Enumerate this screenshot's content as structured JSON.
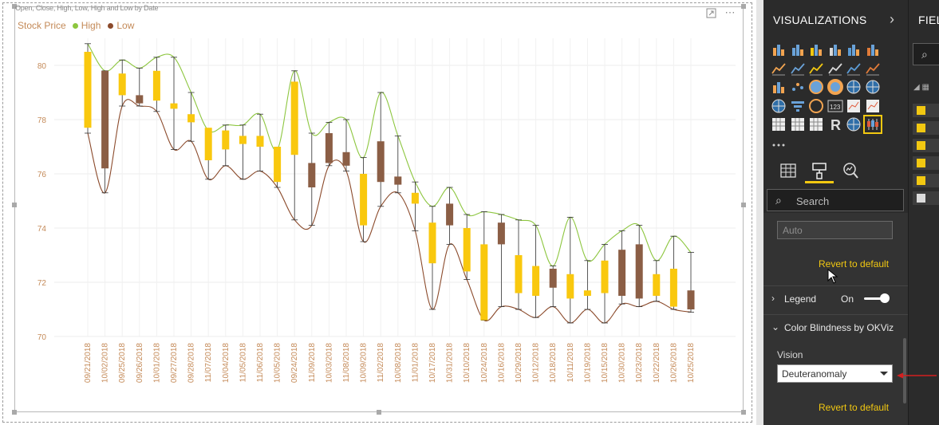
{
  "visual": {
    "title": "Open, Close, High, Low, High and Low by Date",
    "legend": {
      "title": "Stock Price",
      "items": [
        {
          "name": "High",
          "color": "#8dc63f"
        },
        {
          "name": "Low",
          "color": "#8b4a2b"
        }
      ]
    },
    "header_icons": [
      "focus-mode-icon",
      "more-options-icon"
    ]
  },
  "chart_data": {
    "type": "candlestick",
    "x": [
      "09/21/2018",
      "10/02/2018",
      "09/25/2018",
      "09/26/2018",
      "10/01/2018",
      "09/27/2018",
      "09/28/2018",
      "11/07/2018",
      "10/04/2018",
      "11/05/2018",
      "11/06/2018",
      "10/05/2018",
      "09/24/2018",
      "11/09/2018",
      "10/03/2018",
      "11/08/2018",
      "10/09/2018",
      "11/02/2018",
      "10/08/2018",
      "11/01/2018",
      "10/17/2018",
      "10/31/2018",
      "10/10/2018",
      "10/24/2018",
      "10/16/2018",
      "10/29/2018",
      "10/12/2018",
      "10/18/2018",
      "10/11/2018",
      "10/19/2018",
      "10/15/2018",
      "10/30/2018",
      "10/23/2018",
      "10/22/2018",
      "10/26/2018",
      "10/25/2018"
    ],
    "open": [
      77.7,
      79.8,
      78.9,
      78.9,
      78.7,
      78.4,
      77.9,
      76.5,
      76.9,
      77.1,
      77.0,
      75.7,
      76.7,
      76.4,
      77.5,
      76.8,
      74.1,
      77.2,
      75.9,
      74.9,
      72.7,
      74.9,
      72.4,
      70.6,
      74.2,
      71.6,
      71.5,
      72.5,
      71.4,
      71.5,
      71.6,
      73.2,
      73.4,
      71.5,
      71.1,
      71.7
    ],
    "close": [
      80.5,
      76.2,
      79.7,
      78.6,
      79.8,
      78.6,
      78.2,
      77.7,
      77.6,
      77.4,
      77.4,
      77.0,
      79.4,
      75.5,
      76.4,
      76.3,
      76.0,
      75.7,
      75.6,
      75.3,
      74.2,
      74.1,
      74.0,
      73.4,
      73.4,
      73.0,
      72.6,
      71.8,
      72.3,
      71.7,
      72.8,
      71.5,
      71.4,
      72.3,
      72.5,
      71.0
    ],
    "high": [
      80.8,
      79.8,
      80.2,
      79.9,
      80.3,
      80.3,
      79.0,
      77.6,
      77.8,
      77.8,
      78.2,
      76.9,
      79.8,
      77.5,
      77.9,
      78.0,
      76.6,
      79.0,
      77.4,
      75.7,
      74.8,
      75.5,
      74.5,
      74.6,
      74.5,
      74.3,
      74.1,
      72.6,
      74.4,
      72.8,
      73.4,
      73.9,
      74.1,
      72.8,
      73.7,
      73.1
    ],
    "low": [
      77.5,
      75.3,
      78.5,
      78.5,
      78.3,
      76.9,
      77.2,
      75.8,
      76.3,
      75.8,
      76.1,
      75.5,
      74.3,
      74.1,
      76.3,
      76.1,
      73.5,
      74.8,
      75.3,
      73.9,
      71.0,
      73.4,
      72.1,
      70.6,
      71.1,
      71.0,
      70.7,
      71.1,
      70.5,
      71.0,
      70.5,
      71.2,
      71.1,
      71.3,
      71.0,
      70.9
    ],
    "ylim": [
      70,
      81
    ],
    "yticks": [
      70,
      72,
      74,
      76,
      78,
      80
    ],
    "colors": {
      "up": "#f9c80e",
      "down": "#8b5e45",
      "high_line": "#8dc63f",
      "low_line": "#8b4a2b",
      "tick_label": "#c48a58"
    },
    "grid": true,
    "legend_position": "top-left"
  },
  "viz_pane": {
    "title": "VISUALIZATIONS",
    "gallery_icons": [
      "stacked-bar-icon",
      "stacked-column-icon",
      "clustered-bar-icon",
      "clustered-column-icon",
      "percent-bar-icon",
      "percent-column-icon",
      "line-chart-icon",
      "area-chart-icon",
      "stacked-area-icon",
      "line-column-icon",
      "line-clustered-column-icon",
      "ribbon-chart-icon",
      "waterfall-icon",
      "scatter-icon",
      "pie-chart-icon",
      "donut-chart-icon",
      "treemap-icon",
      "map-icon",
      "filled-map-icon",
      "funnel-icon",
      "gauge-icon",
      "card-icon",
      "multirow-card-icon",
      "kpi-icon",
      "slicer-icon",
      "table-icon",
      "matrix-icon",
      "r-script-icon",
      "globe-map-icon",
      "candlestick-icon",
      "more-visuals-icon"
    ],
    "tabs": [
      "fields-tab-icon",
      "format-tab-icon",
      "analytics-tab-icon"
    ],
    "search_placeholder": "Search",
    "auto_value": "Auto",
    "revert_label_1": "Revert to default",
    "legend_section": "Legend",
    "legend_toggle": "On",
    "okviz_section": "Color Blindness by OKViz",
    "vision_label": "Vision",
    "vision_value": "Deuteranomaly",
    "revert_label_2": "Revert to default"
  },
  "fields_pane": {
    "title": "FIELDS"
  }
}
